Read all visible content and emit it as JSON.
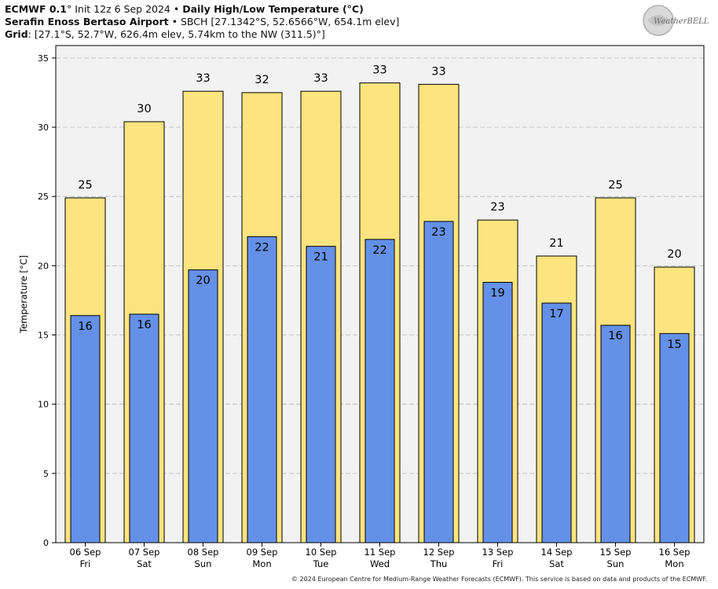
{
  "header": {
    "line1_bold": "ECMWF 0.1",
    "line1_deg": "°",
    "line1_mid": " Init 12z 6 Sep 2024 • ",
    "line1_title": "Daily High/Low Temperature (°C)",
    "line2_bold": "Serafin Enoss Bertaso Airport",
    "line2_rest": " • SBCH [27.1342°S, 52.6566°W, 654.1m elev]",
    "line3_bold": "Grid",
    "line3_rest": ": [27.1°S, 52.7°W, 626.4m elev, 5.74km to the NW (311.5)°]"
  },
  "logo": {
    "text": "WeatherBELL"
  },
  "footer": {
    "text": "© 2024 European Centre for Medium-Range Weather Forecasts (ECMWF). This service is based on data and products of the ECMWF."
  },
  "colors": {
    "high": "#fde47f",
    "low": "#6490e8",
    "plot_bg": "#f2f2f2",
    "grid": "#b8b8b8"
  },
  "chart_data": {
    "type": "bar",
    "categories": [
      "06 Sep\nFri",
      "07 Sep\nSat",
      "08 Sep\nSun",
      "09 Sep\nMon",
      "10 Sep\nTue",
      "11 Sep\nWed",
      "12 Sep\nThu",
      "13 Sep\nFri",
      "14 Sep\nSat",
      "15 Sep\nSun",
      "16 Sep\nMon"
    ],
    "series": [
      {
        "values": [
          24.9,
          30.4,
          32.6,
          32.5,
          32.6,
          33.2,
          33.1,
          23.3,
          20.7,
          24.9,
          19.9
        ],
        "labels": [
          "25",
          "30",
          "33",
          "32",
          "33",
          "33",
          "33",
          "23",
          "21",
          "25",
          "20"
        ]
      },
      {
        "values": [
          16.4,
          16.5,
          19.7,
          22.1,
          21.4,
          21.9,
          23.2,
          18.8,
          17.3,
          15.7,
          15.1
        ],
        "labels": [
          "16",
          "16",
          "20",
          "22",
          "21",
          "22",
          "23",
          "19",
          "17",
          "16",
          "15"
        ]
      }
    ],
    "ylabel": "Temperature [°C]",
    "yticks": [
      0,
      5,
      10,
      15,
      20,
      25,
      30,
      35
    ],
    "ylim": [
      0,
      35.9
    ],
    "grid": true
  }
}
